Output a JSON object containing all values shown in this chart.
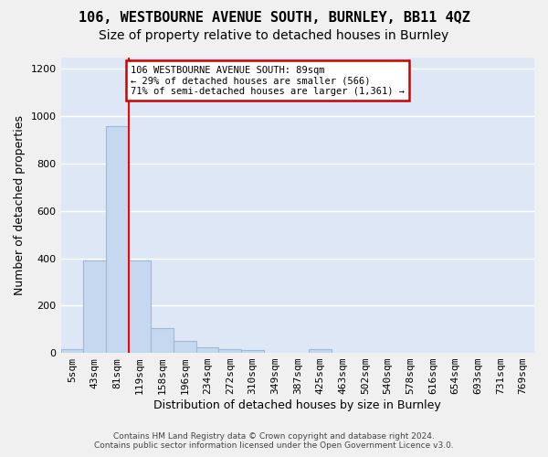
{
  "title": "106, WESTBOURNE AVENUE SOUTH, BURNLEY, BB11 4QZ",
  "subtitle": "Size of property relative to detached houses in Burnley",
  "xlabel": "Distribution of detached houses by size in Burnley",
  "ylabel": "Number of detached properties",
  "footnote1": "Contains HM Land Registry data © Crown copyright and database right 2024.",
  "footnote2": "Contains public sector information licensed under the Open Government Licence v3.0.",
  "bar_labels": [
    "5sqm",
    "43sqm",
    "81sqm",
    "119sqm",
    "158sqm",
    "196sqm",
    "234sqm",
    "272sqm",
    "310sqm",
    "349sqm",
    "387sqm",
    "425sqm",
    "463sqm",
    "502sqm",
    "540sqm",
    "578sqm",
    "616sqm",
    "654sqm",
    "693sqm",
    "731sqm",
    "769sqm"
  ],
  "bar_values": [
    15,
    390,
    960,
    390,
    105,
    50,
    25,
    15,
    10,
    0,
    0,
    15,
    0,
    0,
    0,
    0,
    0,
    0,
    0,
    0,
    0
  ],
  "bar_color": "#c5d8f0",
  "bar_edge_color": "#a0b8d8",
  "red_line_x": 2.5,
  "annotation_text": "106 WESTBOURNE AVENUE SOUTH: 89sqm\n← 29% of detached houses are smaller (566)\n71% of semi-detached houses are larger (1,361) →",
  "annotation_box_color": "#ffffff",
  "annotation_box_edge": "#cc0000",
  "ylim": [
    0,
    1250
  ],
  "yticks": [
    0,
    200,
    400,
    600,
    800,
    1000,
    1200
  ],
  "background_color": "#dde7f5",
  "grid_color": "#ffffff",
  "fig_bg_color": "#f0f0f0",
  "title_fontsize": 11,
  "subtitle_fontsize": 10,
  "axis_fontsize": 9,
  "tick_fontsize": 8
}
